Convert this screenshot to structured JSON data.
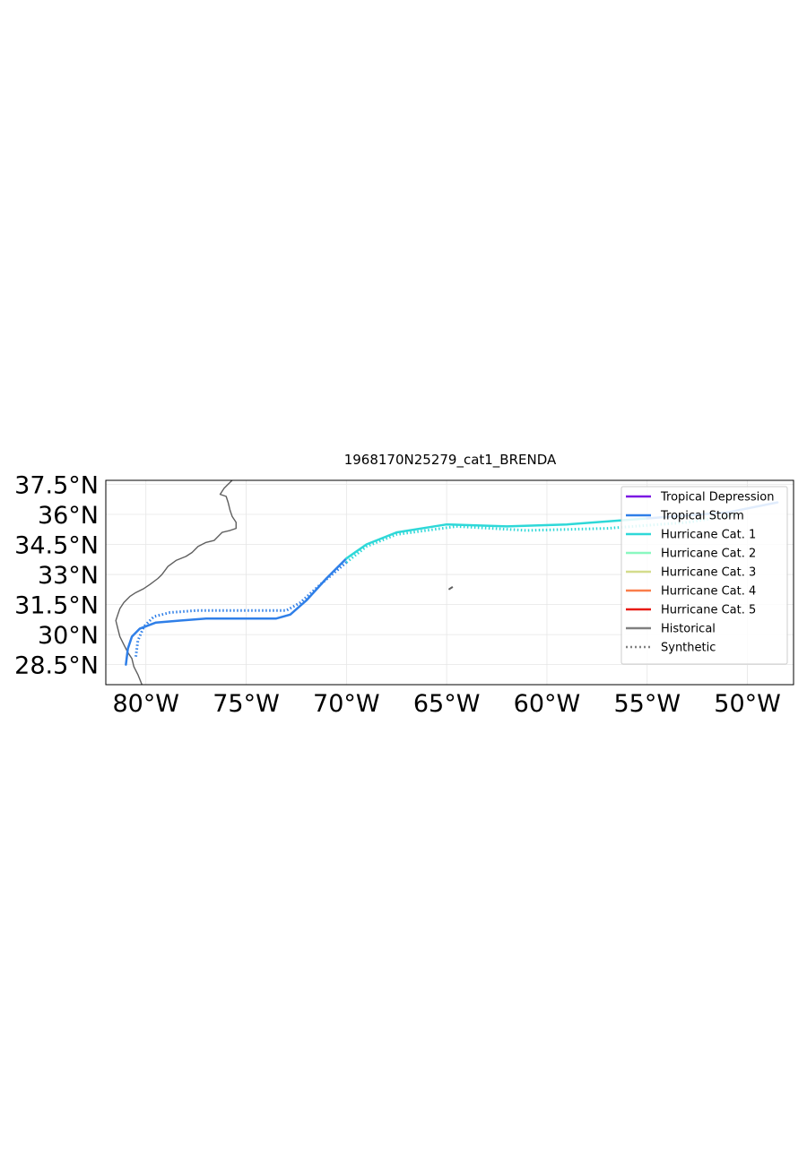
{
  "title": "1968170N25279_cat1_BRENDA",
  "map_extent": {
    "lon": [
      -82,
      -47.7
    ],
    "lat": [
      27.5,
      37.7
    ]
  },
  "x_ticks": [
    {
      "value": -80,
      "label": "80°W"
    },
    {
      "value": -75,
      "label": "75°W"
    },
    {
      "value": -70,
      "label": "70°W"
    },
    {
      "value": -65,
      "label": "65°W"
    },
    {
      "value": -60,
      "label": "60°W"
    },
    {
      "value": -55,
      "label": "55°W"
    },
    {
      "value": -50,
      "label": "50°W"
    }
  ],
  "y_ticks": [
    {
      "value": 37.5,
      "label": "37.5°N"
    },
    {
      "value": 36,
      "label": "36°N"
    },
    {
      "value": 34.5,
      "label": "34.5°N"
    },
    {
      "value": 33,
      "label": "33°N"
    },
    {
      "value": 31.5,
      "label": "31.5°N"
    },
    {
      "value": 30,
      "label": "30°N"
    },
    {
      "value": 28.5,
      "label": "28.5°N"
    }
  ],
  "grid": true,
  "coastline_color": "#5f5f5f",
  "coastline": [
    [
      -80.2,
      27.5
    ],
    [
      -80.4,
      28.0
    ],
    [
      -80.6,
      28.4
    ],
    [
      -80.7,
      28.8
    ],
    [
      -80.9,
      29.1
    ],
    [
      -81.1,
      29.5
    ],
    [
      -81.3,
      29.9
    ],
    [
      -81.4,
      30.3
    ],
    [
      -81.5,
      30.7
    ],
    [
      -81.4,
      31.0
    ],
    [
      -81.3,
      31.3
    ],
    [
      -81.1,
      31.6
    ],
    [
      -80.8,
      31.9
    ],
    [
      -80.5,
      32.1
    ],
    [
      -80.1,
      32.3
    ],
    [
      -79.8,
      32.5
    ],
    [
      -79.4,
      32.8
    ],
    [
      -79.2,
      33.0
    ],
    [
      -78.9,
      33.4
    ],
    [
      -78.5,
      33.7
    ],
    [
      -78.0,
      33.9
    ],
    [
      -77.7,
      34.1
    ],
    [
      -77.4,
      34.4
    ],
    [
      -77.0,
      34.6
    ],
    [
      -76.6,
      34.7
    ],
    [
      -76.4,
      34.9
    ],
    [
      -76.2,
      35.1
    ],
    [
      -75.8,
      35.2
    ],
    [
      -75.5,
      35.3
    ],
    [
      -75.5,
      35.6
    ],
    [
      -75.7,
      35.9
    ],
    [
      -75.8,
      36.2
    ],
    [
      -75.9,
      36.6
    ],
    [
      -76.0,
      36.9
    ],
    [
      -76.3,
      37.0
    ],
    [
      -76.1,
      37.3
    ],
    [
      -75.8,
      37.6
    ],
    [
      -75.7,
      37.7
    ]
  ],
  "island": [
    [
      -64.9,
      32.25
    ],
    [
      -64.7,
      32.38
    ]
  ],
  "legend": {
    "position": "upper-right",
    "items": [
      {
        "label": "Tropical Depression",
        "color": "#7b18e3",
        "style": "solid"
      },
      {
        "label": "Tropical Storm",
        "color": "#2f7fe8",
        "style": "solid"
      },
      {
        "label": "Hurricane Cat. 1",
        "color": "#2ed8d8",
        "style": "solid"
      },
      {
        "label": "Hurricane Cat. 2",
        "color": "#8af8c0",
        "style": "solid"
      },
      {
        "label": "Hurricane Cat. 3",
        "color": "#d4dc8c",
        "style": "solid"
      },
      {
        "label": "Hurricane Cat. 4",
        "color": "#fa7d4a",
        "style": "solid"
      },
      {
        "label": "Hurricane Cat. 5",
        "color": "#e81a12",
        "style": "solid"
      },
      {
        "label": "Historical",
        "color": "#808080",
        "style": "solid"
      },
      {
        "label": "Synthetic",
        "color": "#808080",
        "style": "dotted"
      }
    ]
  },
  "tracks": [
    {
      "kind": "historical",
      "segments": [
        {
          "category": "Tropical Storm",
          "color": "#2f7fe8",
          "points": [
            [
              -81.0,
              28.5
            ],
            [
              -80.9,
              29.3
            ],
            [
              -80.7,
              29.9
            ],
            [
              -80.3,
              30.3
            ],
            [
              -79.5,
              30.6
            ],
            [
              -78.3,
              30.7
            ],
            [
              -77.0,
              30.8
            ],
            [
              -75.0,
              30.8
            ],
            [
              -73.5,
              30.8
            ],
            [
              -72.8,
              31.0
            ],
            [
              -72.0,
              31.7
            ],
            [
              -71.0,
              32.8
            ],
            [
              -70.0,
              33.8
            ]
          ]
        },
        {
          "category": "Hurricane Cat. 1",
          "color": "#2ed8d8",
          "points": [
            [
              -70.0,
              33.8
            ],
            [
              -69.0,
              34.5
            ],
            [
              -67.5,
              35.1
            ],
            [
              -65.0,
              35.5
            ],
            [
              -62.0,
              35.4
            ],
            [
              -59.0,
              35.5
            ],
            [
              -55.0,
              35.8
            ]
          ]
        },
        {
          "category": "Tropical Storm",
          "color": "#2f7fe8",
          "points": [
            [
              -55.0,
              35.8
            ],
            [
              -51.0,
              36.1
            ],
            [
              -48.5,
              36.6
            ]
          ]
        }
      ]
    },
    {
      "kind": "synthetic",
      "segments": [
        {
          "category": "Tropical Storm",
          "color": "#2f7fe8",
          "points": [
            [
              -80.5,
              28.9
            ],
            [
              -80.4,
              29.7
            ],
            [
              -80.1,
              30.4
            ],
            [
              -79.6,
              30.9
            ],
            [
              -78.8,
              31.1
            ],
            [
              -77.5,
              31.2
            ],
            [
              -76.0,
              31.2
            ],
            [
              -74.0,
              31.2
            ],
            [
              -73.0,
              31.2
            ],
            [
              -72.3,
              31.6
            ],
            [
              -71.3,
              32.5
            ],
            [
              -70.0,
              33.6
            ]
          ]
        },
        {
          "category": "Hurricane Cat. 1",
          "color": "#2ed8d8",
          "points": [
            [
              -70.0,
              33.6
            ],
            [
              -69.0,
              34.4
            ],
            [
              -67.5,
              35.0
            ],
            [
              -64.5,
              35.4
            ],
            [
              -61.0,
              35.2
            ],
            [
              -57.0,
              35.3
            ],
            [
              -53.0,
              35.6
            ],
            [
              -50.5,
              36.0
            ]
          ]
        }
      ]
    }
  ]
}
